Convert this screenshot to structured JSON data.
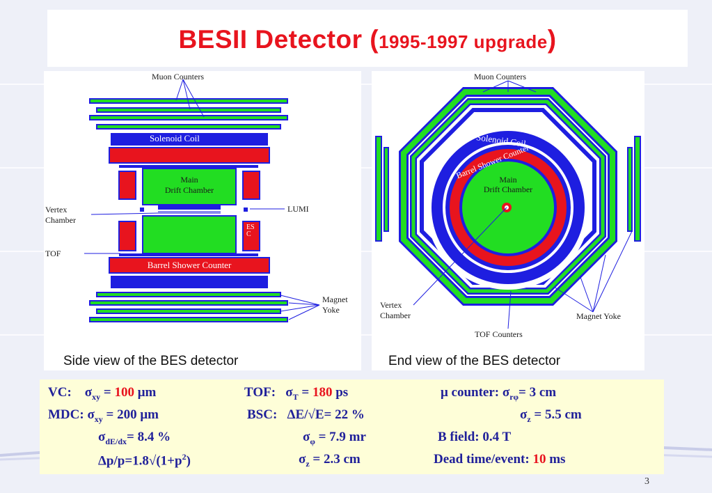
{
  "slide": {
    "title_main": "BESII Detector (",
    "title_small": "1995-1997 upgrade",
    "title_close": ")",
    "page_number": "3"
  },
  "side_view": {
    "caption": "Side view of the BES detector",
    "labels": {
      "muon": "Muon Counters",
      "solenoid": "Solenoid Coil",
      "mdc_1": "Main",
      "mdc_2": "Drift Chamber",
      "vertex_1": "Vertex",
      "vertex_2": "Chamber",
      "lumi": "LUMI",
      "tof": "TOF",
      "esc": "ESC",
      "bsc": "Barrel Shower Counter",
      "yoke_1": "Magnet",
      "yoke_2": "Yoke"
    }
  },
  "end_view": {
    "caption": "End view of the BES detector",
    "labels": {
      "muon": "Muon Counters",
      "solenoid": "Solenoid Coil",
      "bsc": "Barrel Shower Counter",
      "mdc_1": "Main",
      "mdc_2": "Drift Chamber",
      "vertex_1": "Vertex",
      "vertex_2": "Chamber",
      "tof": "TOF Counters",
      "yoke": "Magnet Yoke"
    }
  },
  "specs": {
    "vc_label": "VC:",
    "vc_sigma": "σ",
    "vc_sub": "xy",
    "vc_eq": " = ",
    "vc_value": "100",
    "vc_unit": "  μm",
    "tof_label": "TOF:",
    "tof_sigma": "σ",
    "tof_sub": "T",
    "tof_eq": " = ",
    "tof_value": "180",
    "tof_unit": " ps",
    "mu_label": "μ counter:  σ",
    "mu_sub": "rφ",
    "mu_value": "= 3 cm",
    "mdc_label": "MDC: σ",
    "mdc_sub": "xy",
    "mdc_value": " =  200  μm",
    "bsc_label": "BSC:",
    "bsc_value": "ΔE/√E= 22 %",
    "muz_sigma": "σ",
    "muz_sub": "z",
    "muz_value": " = 5.5 cm",
    "dedx_sigma": "σ",
    "dedx_sub": "dE/dx",
    "dedx_value": "= 8.4 %",
    "phi_sigma": "σ",
    "phi_sub": "φ",
    "phi_value": " = 7.9 mr",
    "bfield": "B field:    0.4 T",
    "momentum": "Δp/p=1.8√(1+p",
    "momentum_sup": "2",
    "momentum_close": ")",
    "bscz_sigma": "σ",
    "bscz_sub": "z",
    "bscz_value": " = 2.3 cm",
    "deadtime_label": "Dead time/event: ",
    "deadtime_value": "10",
    "deadtime_unit": " ms"
  },
  "colors": {
    "title_red": "#e8141e",
    "green": "#22dd22",
    "blue": "#1e1ee0",
    "red": "#e8141e",
    "spec_blue": "#20209a",
    "spec_bg": "#fefed8"
  }
}
